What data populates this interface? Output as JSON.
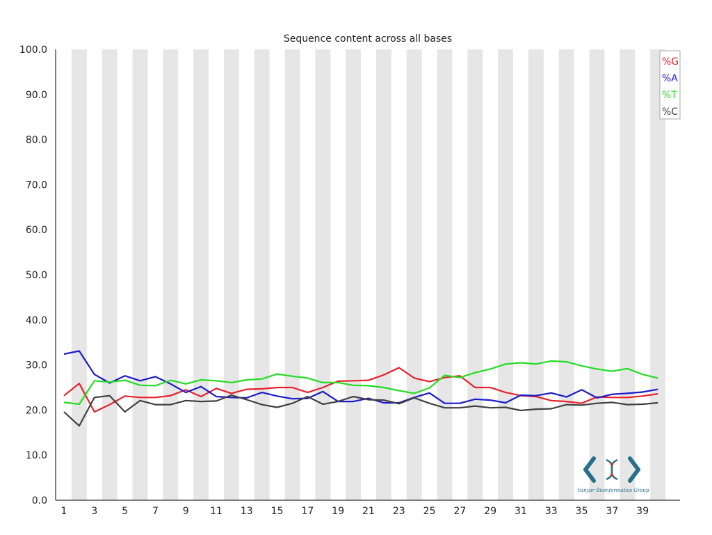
{
  "chart_data": {
    "type": "line",
    "title": "Sequence content across all bases",
    "xlabel": "",
    "ylabel": "",
    "ylim": [
      0,
      100
    ],
    "y_ticks": [
      "0.0",
      "10.0",
      "20.0",
      "30.0",
      "40.0",
      "50.0",
      "60.0",
      "70.0",
      "80.0",
      "90.0",
      "100.0"
    ],
    "x_ticks": [
      "1",
      "3",
      "5",
      "7",
      "9",
      "11",
      "13",
      "15",
      "17",
      "19",
      "21",
      "23",
      "25",
      "27",
      "29",
      "31",
      "33",
      "35",
      "37",
      "39"
    ],
    "x": [
      1,
      2,
      3,
      4,
      5,
      6,
      7,
      8,
      9,
      10,
      11,
      12,
      13,
      14,
      15,
      16,
      17,
      18,
      19,
      20,
      21,
      22,
      23,
      24,
      25,
      26,
      27,
      28,
      29,
      30,
      31,
      32,
      33,
      34,
      35,
      36,
      37,
      38,
      39,
      40
    ],
    "legend_position": "top-right",
    "grid": "alternating vertical bands",
    "series": [
      {
        "name": "%G",
        "color": "#e8202a",
        "values": [
          23.2,
          25.9,
          19.6,
          21.2,
          23.1,
          22.8,
          22.8,
          23.2,
          24.5,
          23.0,
          24.8,
          23.7,
          24.6,
          24.7,
          25.0,
          25.0,
          23.9,
          25.0,
          26.4,
          26.5,
          26.6,
          27.8,
          29.4,
          27.1,
          26.3,
          27.2,
          27.6,
          25.0,
          25.0,
          23.9,
          23.2,
          23.0,
          22.1,
          21.9,
          21.5,
          22.9,
          22.8,
          22.8,
          23.1,
          23.6
        ]
      },
      {
        "name": "%A",
        "color": "#1a1acc",
        "values": [
          32.4,
          33.1,
          27.9,
          26.0,
          27.6,
          26.5,
          27.4,
          25.8,
          23.9,
          25.2,
          23.0,
          22.8,
          22.7,
          23.9,
          23.1,
          22.5,
          22.6,
          24.1,
          21.9,
          21.9,
          22.6,
          21.6,
          21.6,
          22.8,
          23.8,
          21.5,
          21.5,
          22.4,
          22.2,
          21.6,
          23.3,
          23.2,
          23.8,
          22.9,
          24.5,
          22.7,
          23.5,
          23.7,
          24.0,
          24.6
        ]
      },
      {
        "name": "%T",
        "color": "#22dd22",
        "values": [
          21.7,
          21.3,
          26.5,
          26.2,
          26.6,
          25.5,
          25.4,
          26.6,
          25.8,
          26.7,
          26.5,
          26.1,
          26.7,
          26.9,
          28.0,
          27.5,
          27.1,
          26.1,
          26.1,
          25.5,
          25.4,
          25.0,
          24.3,
          23.7,
          24.9,
          27.7,
          27.2,
          28.3,
          29.1,
          30.2,
          30.5,
          30.2,
          30.9,
          30.7,
          29.8,
          29.1,
          28.6,
          29.2,
          27.9,
          27.1
        ]
      },
      {
        "name": "%C",
        "color": "#404040",
        "values": [
          19.6,
          16.5,
          22.8,
          23.2,
          19.6,
          22.1,
          21.2,
          21.2,
          22.1,
          21.9,
          22.0,
          23.3,
          22.3,
          21.2,
          20.6,
          21.5,
          23.0,
          21.3,
          21.9,
          23.0,
          22.3,
          22.2,
          21.4,
          22.7,
          21.5,
          20.5,
          20.5,
          20.9,
          20.5,
          20.6,
          19.9,
          20.2,
          20.3,
          21.2,
          21.1,
          21.5,
          21.7,
          21.2,
          21.3,
          21.6
        ]
      }
    ]
  },
  "logo": {
    "text": "Vanyar Bioinformatics Group",
    "color": "#2a6f8a"
  }
}
